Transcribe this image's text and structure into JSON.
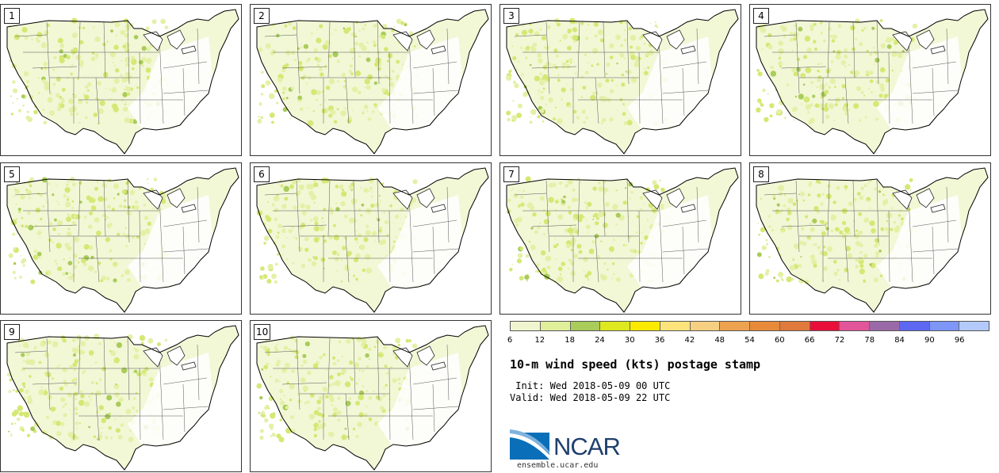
{
  "panels": [
    {
      "label": "1"
    },
    {
      "label": "2"
    },
    {
      "label": "3"
    },
    {
      "label": "4"
    },
    {
      "label": "5"
    },
    {
      "label": "6"
    },
    {
      "label": "7"
    },
    {
      "label": "8"
    },
    {
      "label": "9"
    },
    {
      "label": "10"
    }
  ],
  "colorbar": {
    "colors": [
      "#f0f5d0",
      "#dfef9a",
      "#a9cc5a",
      "#dde81e",
      "#fbe900",
      "#fde47a",
      "#f6cf82",
      "#eda24f",
      "#e88a3a",
      "#e07a3c",
      "#e8103a",
      "#e2559a",
      "#9a6aa8",
      "#5d68f2",
      "#7d96f8",
      "#b3c9fa"
    ],
    "ticks": [
      "6",
      "12",
      "18",
      "24",
      "30",
      "36",
      "42",
      "48",
      "54",
      "60",
      "66",
      "72",
      "78",
      "84",
      "90",
      "96"
    ]
  },
  "title": "10-m wind speed (kts) postage stamp",
  "init_line": " Init: Wed 2018-05-09 00 UTC",
  "valid_line": "Valid: Wed 2018-05-09 22 UTC",
  "logo": {
    "text": "NCAR",
    "url": "ensemble.ucar.edu"
  }
}
